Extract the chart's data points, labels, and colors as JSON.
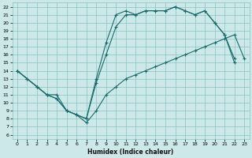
{
  "title": "",
  "xlabel": "Humidex (Indice chaleur)",
  "background_color": "#cce8e8",
  "grid_color": "#88c4c4",
  "line_color": "#1a6b6b",
  "xlim": [
    -0.5,
    23.5
  ],
  "ylim": [
    5.5,
    22.5
  ],
  "xticks": [
    0,
    1,
    2,
    3,
    4,
    5,
    6,
    7,
    8,
    9,
    10,
    11,
    12,
    13,
    14,
    15,
    16,
    17,
    18,
    19,
    20,
    21,
    22,
    23
  ],
  "yticks": [
    6,
    7,
    8,
    9,
    10,
    11,
    12,
    13,
    14,
    15,
    16,
    17,
    18,
    19,
    20,
    21,
    22
  ],
  "line1_x": [
    0,
    1,
    2,
    3,
    4,
    5,
    6,
    7,
    8,
    9,
    10,
    11,
    12,
    13,
    14,
    15,
    16,
    17,
    18,
    19,
    20,
    21,
    22
  ],
  "line1_y": [
    14,
    13,
    12,
    11,
    10.5,
    9,
    8.5,
    8,
    13,
    17.5,
    21,
    21.5,
    21,
    21.5,
    21.5,
    21.5,
    22,
    21.5,
    21,
    21.5,
    20,
    18.5,
    15.5
  ],
  "line2_x": [
    0,
    2,
    3,
    4,
    5,
    6,
    7,
    8,
    9,
    10,
    11,
    12,
    13,
    14,
    15,
    16,
    17,
    18,
    19,
    20,
    21,
    22,
    23
  ],
  "line2_y": [
    14,
    12,
    11,
    11,
    9,
    8.5,
    7.5,
    9,
    11,
    12,
    13,
    13.5,
    14,
    14.5,
    15,
    15.5,
    16,
    16.5,
    17,
    17.5,
    18,
    18.5,
    15.5
  ],
  "line3_x": [
    0,
    1,
    2,
    3,
    4,
    5,
    6,
    7,
    8,
    9,
    10,
    11,
    12,
    13,
    14,
    15,
    16,
    17,
    18,
    19,
    20,
    21,
    22,
    23
  ],
  "line3_y": [
    14,
    13,
    12,
    11,
    10.5,
    9,
    8.5,
    8,
    12.5,
    16,
    19.5,
    21,
    21,
    21.5,
    21.5,
    21.5,
    22,
    21.5,
    21,
    21.5,
    20,
    18.5,
    15,
    null
  ]
}
